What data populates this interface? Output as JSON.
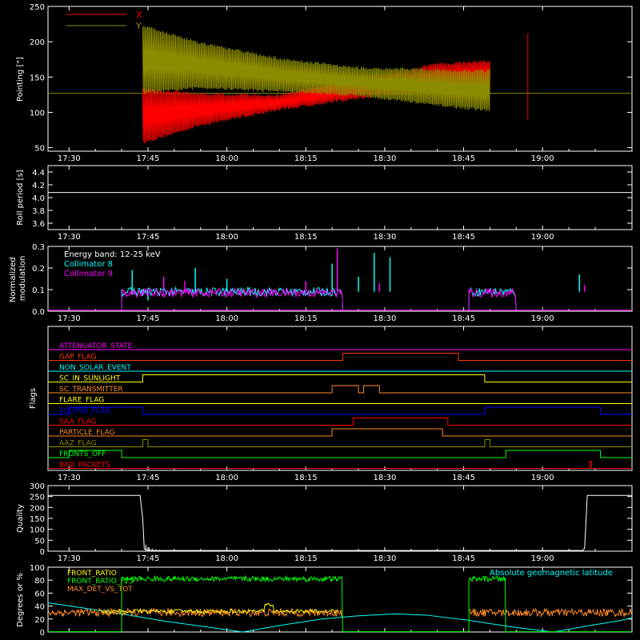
{
  "time_ticks": [
    "17:30",
    "17:45",
    "18:00",
    "18:15",
    "18:30",
    "18:45",
    "19:00"
  ],
  "time_range_minutes": [
    1046,
    1157
  ],
  "colors": {
    "background": "#000000",
    "axis": "#ffffff",
    "x_red": "#ff0000",
    "y_olive": "#8c8c00",
    "cyan": "#00ffff",
    "magenta": "#ff00ff",
    "green": "#00ff00",
    "orange": "#ff8c28",
    "yellow": "#ffff00",
    "blue": "#0000ff"
  },
  "chart_data": [
    {
      "type": "line",
      "id": "pointing",
      "ylabel": "Pointing [\"]",
      "ylim": [
        45,
        250
      ],
      "yticks": [
        50,
        100,
        150,
        200,
        250
      ],
      "legend": {
        "placement": "top-left"
      },
      "baseline": 127,
      "series": [
        {
          "name": "X",
          "color": "#ff0000",
          "start": "17:44",
          "end": "18:50",
          "envelope_low": [
            [
              1064,
              55
            ],
            [
              1075,
              80
            ],
            [
              1090,
              102
            ],
            [
              1105,
              118
            ],
            [
              1120,
              130
            ],
            [
              1137,
              133
            ]
          ],
          "envelope_high": [
            [
              1064,
              135
            ],
            [
              1075,
              128
            ],
            [
              1090,
              126
            ],
            [
              1105,
              150
            ],
            [
              1120,
              170
            ],
            [
              1137,
              178
            ]
          ]
        },
        {
          "name": "Y",
          "color": "#8c8c00",
          "start": "17:44",
          "end": "18:50",
          "envelope_low": [
            [
              1064,
              125
            ],
            [
              1075,
              133
            ],
            [
              1090,
              128
            ],
            [
              1105,
              122
            ],
            [
              1120,
              108
            ],
            [
              1137,
              95
            ]
          ],
          "envelope_high": [
            [
              1064,
              225
            ],
            [
              1075,
              200
            ],
            [
              1090,
              178
            ],
            [
              1105,
              165
            ],
            [
              1120,
              162
            ],
            [
              1137,
              160
            ]
          ]
        }
      ]
    },
    {
      "type": "line",
      "id": "roll-period",
      "ylabel": "Roll period [s]",
      "ylim": [
        3.5,
        4.5
      ],
      "yticks": [
        3.6,
        3.8,
        4.0,
        4.2,
        4.4
      ],
      "series": [
        {
          "name": "",
          "color": "#ffffff",
          "constant": 4.08
        }
      ]
    },
    {
      "type": "line",
      "id": "modulation",
      "ylabel": "Normalized modulation",
      "ylim": [
        0,
        0.3
      ],
      "yticks": [
        0.0,
        0.1,
        0.2,
        0.3
      ],
      "annotation": "Energy band: 12-25 keV",
      "legend": {
        "placement": "top-left"
      },
      "series": [
        {
          "name": "Collimator 8",
          "color": "#00ffff",
          "segments": [
            [
              "17:40",
              "18:22",
              0.09
            ],
            [
              "18:46",
              "18:55",
              0.09
            ]
          ],
          "spikes": [
            [
              1062,
              0.19
            ],
            [
              1065,
              0.05
            ],
            [
              1074,
              0.2
            ],
            [
              1080,
              0.15
            ],
            [
              1100,
              0.22
            ],
            [
              1105,
              0.16
            ],
            [
              1108,
              0.27
            ],
            [
              1111,
              0.25
            ],
            [
              1147,
              0.17
            ]
          ]
        },
        {
          "name": "Collimator 9",
          "color": "#ff00ff",
          "segments": [
            [
              "17:40",
              "18:22",
              0.085
            ],
            [
              "18:46",
              "18:55",
              0.085
            ]
          ],
          "spikes": [
            [
              1068,
              0.16
            ],
            [
              1072,
              0.14
            ],
            [
              1095,
              0.14
            ],
            [
              1101,
              0.29
            ],
            [
              1109,
              0.13
            ],
            [
              1148,
              0.12
            ]
          ]
        }
      ]
    },
    {
      "type": "line",
      "id": "flags",
      "ylabel": "Flags",
      "series": [
        {
          "name": "ATTENUATOR_STATE",
          "color": "#ff00ff",
          "steps": []
        },
        {
          "name": "GAP_FLAG",
          "color": "#ff3c00",
          "steps": [
            [
              "18:22",
              "18:44"
            ]
          ]
        },
        {
          "name": "NON_SOLAR_EVENT",
          "color": "#00ffff",
          "steps": []
        },
        {
          "name": "SC_IN_SUNLIGHT",
          "color": "#ffff00",
          "steps": [
            [
              "17:44",
              "18:49"
            ]
          ]
        },
        {
          "name": "SC_TRANSMITTER",
          "color": "#ff8c28",
          "steps": [
            [
              "18:20",
              "18:25"
            ],
            [
              "18:26",
              "18:29"
            ]
          ]
        },
        {
          "name": "FLARE_FLAG",
          "color": "#ffff00",
          "steps": []
        },
        {
          "name": "ECLIPSE_FLAG",
          "color": "#0000ff",
          "steps": [
            [
              "17:30",
              "17:44"
            ],
            [
              "18:49",
              "19:11"
            ]
          ]
        },
        {
          "name": "SAA_FLAG",
          "color": "#ff0000",
          "steps": [
            [
              "18:24",
              "18:42"
            ]
          ]
        },
        {
          "name": "PARTICLE_FLAG",
          "color": "#ff8c28",
          "steps": [
            [
              "18:20",
              "18:41"
            ]
          ]
        },
        {
          "name": "AAZ_FLAG",
          "color": "#8c8c00",
          "steps": [
            [
              "17:44",
              "17:45"
            ],
            [
              "18:49",
              "18:50"
            ]
          ]
        },
        {
          "name": "FRONTS_OFF",
          "color": "#00ff00",
          "steps": [
            [
              "17:30",
              "17:40"
            ],
            [
              "18:53",
              "19:11"
            ]
          ]
        },
        {
          "name": "BAD_PACKETS",
          "color": "#ff0000",
          "steps": [
            [
              "19:09",
              "19:09"
            ]
          ]
        }
      ]
    },
    {
      "type": "line",
      "id": "quality",
      "ylabel": "Quality",
      "ylim": [
        0,
        300
      ],
      "yticks": [
        0,
        50,
        100,
        150,
        200,
        250,
        300
      ],
      "series": [
        {
          "name": "",
          "color": "#ffffff",
          "points": [
            [
              1046,
              255
            ],
            [
              1063.5,
              255
            ],
            [
              1064,
              150
            ],
            [
              1064.3,
              10
            ],
            [
              1065,
              5
            ],
            [
              1066,
              3
            ],
            [
              1147.7,
              3
            ],
            [
              1148,
              15
            ],
            [
              1148.5,
              255
            ],
            [
              1157,
              255
            ]
          ]
        }
      ]
    },
    {
      "type": "line",
      "id": "ratios",
      "ylabel": "Degrees or %",
      "ylim": [
        0,
        100
      ],
      "yticks": [
        0,
        20,
        40,
        60,
        80,
        100
      ],
      "annotation": "Absolute geomagnetic latitude",
      "legend": {
        "placement": "top-left"
      },
      "series": [
        {
          "name": "FRONT_RATIO",
          "color": "#ffff00",
          "level": 32
        },
        {
          "name": "FRONT_RATIO_F25",
          "color": "#00ff00",
          "segments": [
            [
              "17:40",
              "18:22",
              82
            ],
            [
              "18:46",
              "18:53",
              82
            ]
          ]
        },
        {
          "name": "MAX_DET_VS_TOT",
          "color": "#ff8c28",
          "level": 30
        },
        {
          "name": "Absolute geomagnetic latitude",
          "color": "#00ffff",
          "points": [
            [
              1046,
              45
            ],
            [
              1052,
              38
            ],
            [
              1060,
              28
            ],
            [
              1068,
              17
            ],
            [
              1076,
              8
            ],
            [
              1083,
              0
            ],
            [
              1090,
              10
            ],
            [
              1098,
              20
            ],
            [
              1105,
              25
            ],
            [
              1112,
              28
            ],
            [
              1118,
              26
            ],
            [
              1126,
              18
            ],
            [
              1134,
              8
            ],
            [
              1142,
              0
            ],
            [
              1149,
              10
            ],
            [
              1155,
              18
            ],
            [
              1157,
              22
            ]
          ]
        }
      ]
    }
  ]
}
